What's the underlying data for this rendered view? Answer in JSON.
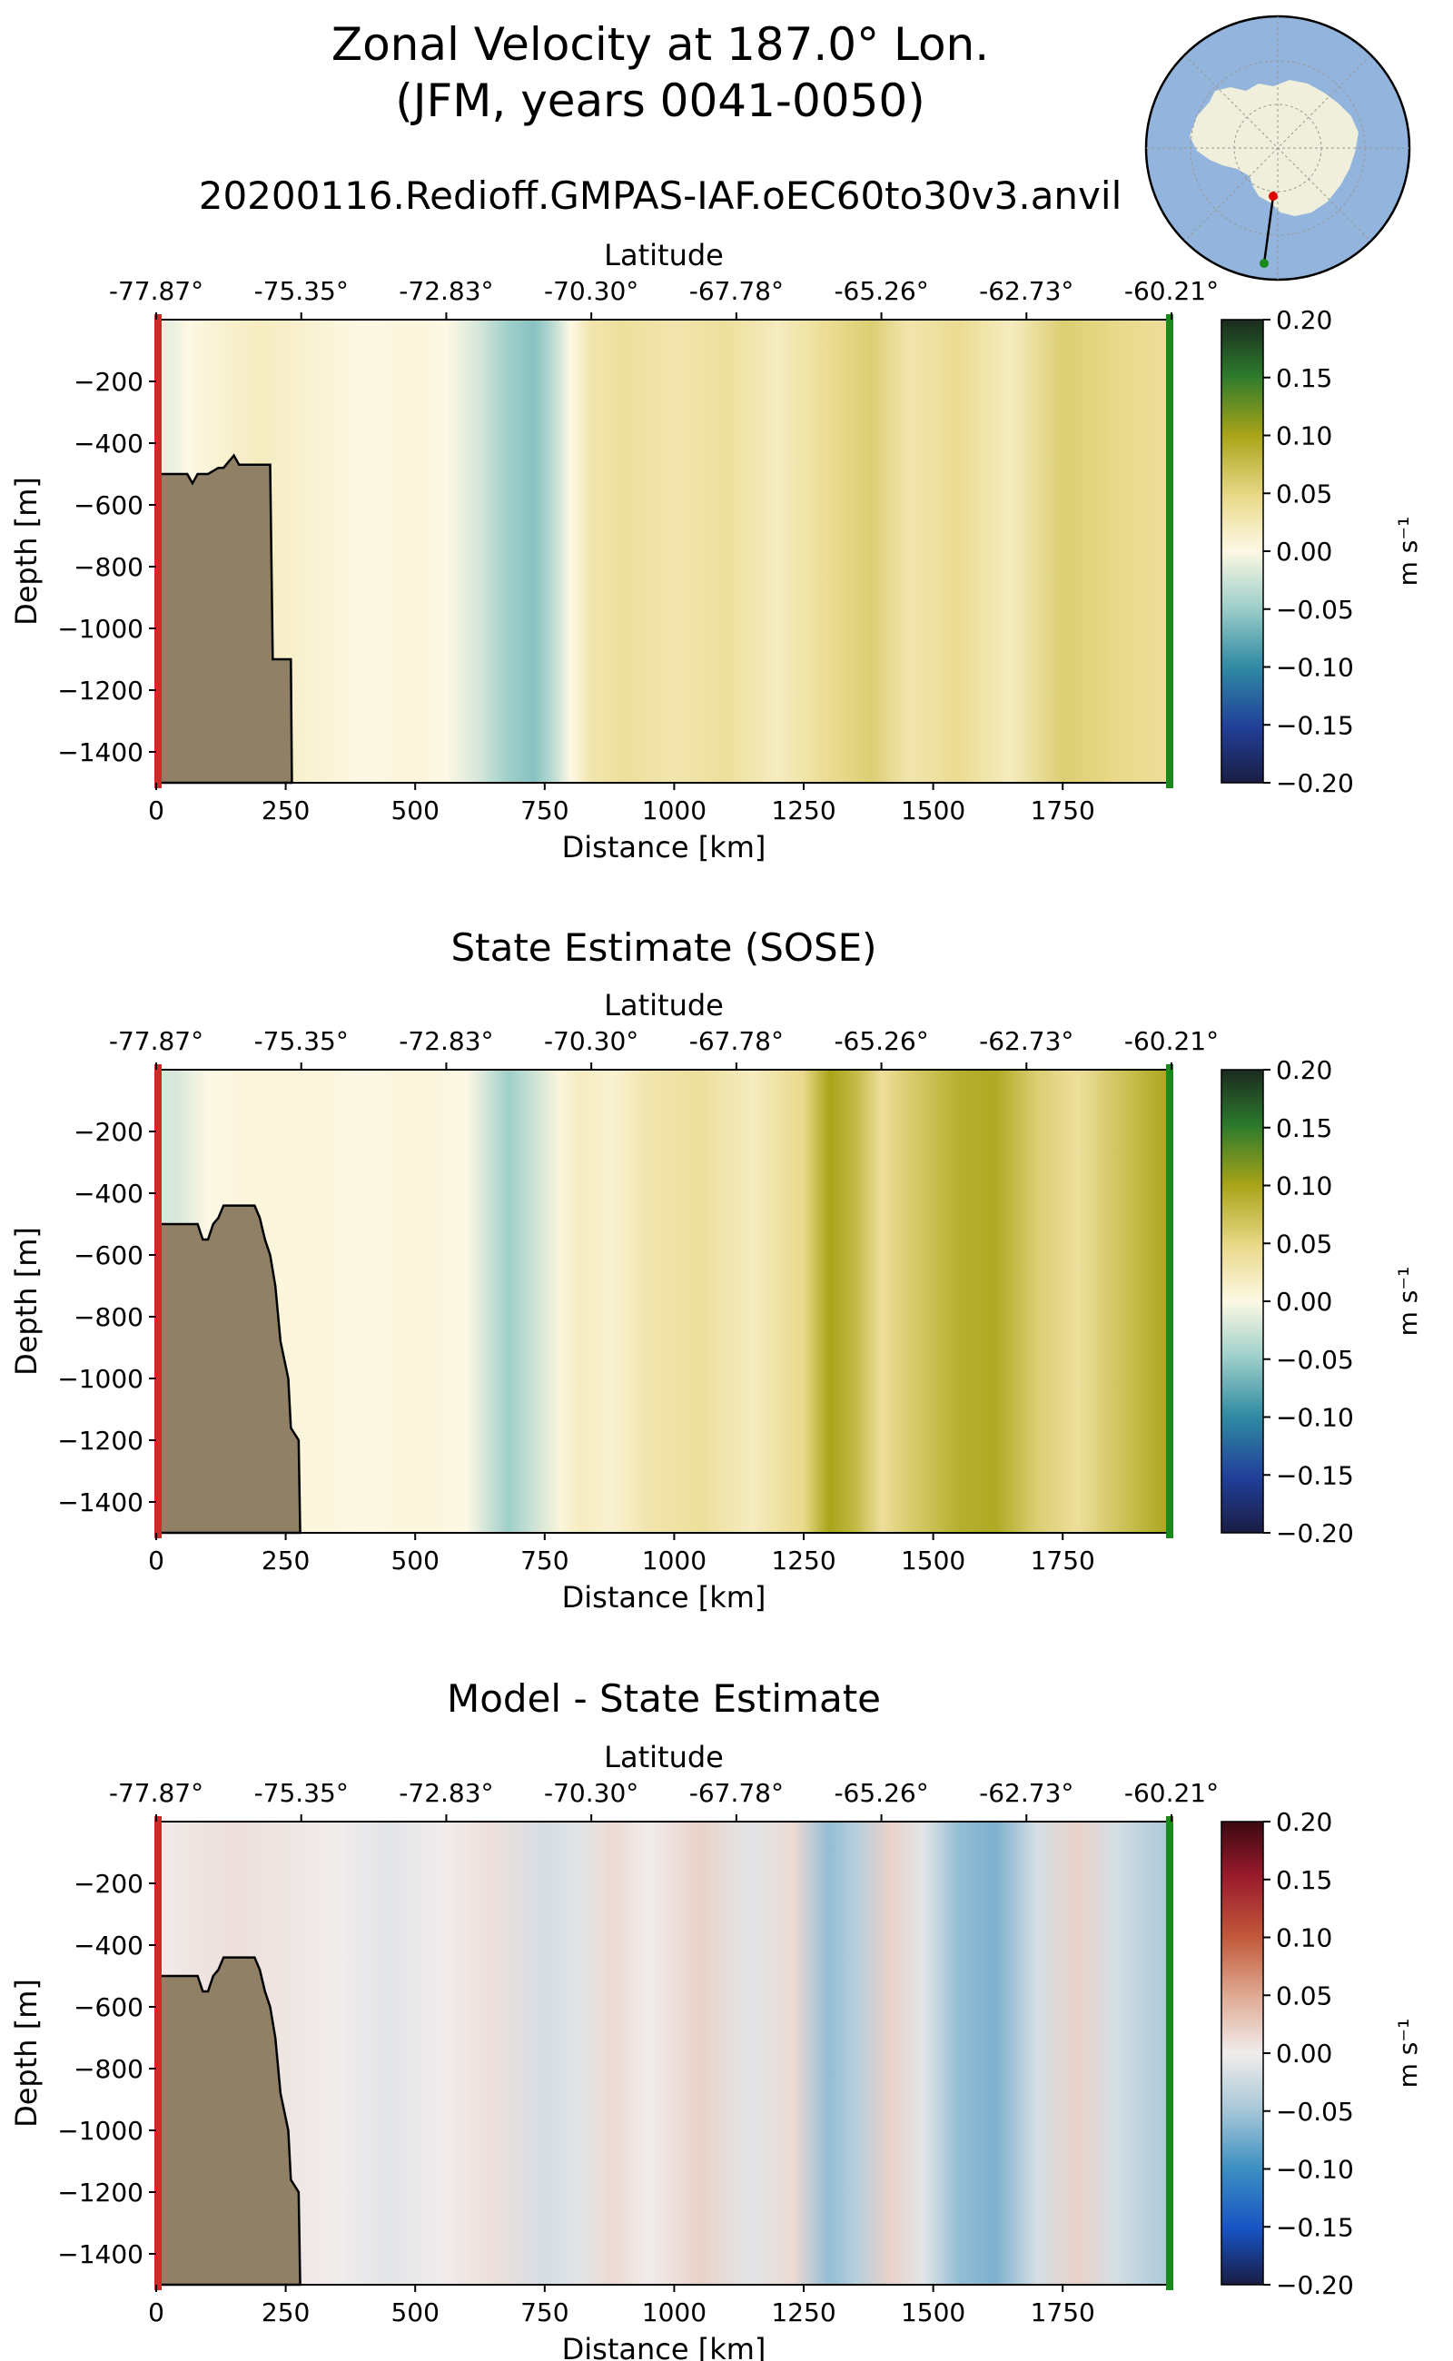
{
  "title": {
    "line1": "Zonal Velocity at 187.0° Lon.",
    "line2": "(JFM, years 0041-0050)"
  },
  "run_name": "20200116.Redioff.GMPAS-IAF.oEC60to30v3.anvil",
  "colors": {
    "bathymetry": "#8f8066",
    "start_marker": "#d62728",
    "end_marker": "#1a8a1a",
    "ocean_map": "#93b4dc",
    "land_map": "#efefdc"
  },
  "chart_data": [
    {
      "type": "heatmap",
      "title": "",
      "xlabel": "Distance [km]",
      "ylabel": "Depth [m]",
      "top_axis_label": "Latitude",
      "xlim": [
        0,
        1960
      ],
      "ylim": [
        -1500,
        0
      ],
      "x_ticks": [
        0,
        250,
        500,
        750,
        1000,
        1250,
        1500,
        1750
      ],
      "x_tick_labels": [
        "0",
        "250",
        "500",
        "750",
        "1000",
        "1250",
        "1500",
        "1750"
      ],
      "y_ticks": [
        -200,
        -400,
        -600,
        -800,
        -1000,
        -1200,
        -1400
      ],
      "y_tick_labels": [
        "−200",
        "−400",
        "−600",
        "−800",
        "−1000",
        "−1200",
        "−1400"
      ],
      "lat_ticks_km": [
        0,
        280,
        560,
        840,
        1120,
        1400,
        1680,
        1960
      ],
      "lat_tick_labels": [
        "-77.87°",
        "-75.35°",
        "-72.83°",
        "-70.30°",
        "-67.78°",
        "-65.26°",
        "-62.73°",
        "-60.21°"
      ],
      "colorbar": {
        "label": "m s⁻¹",
        "colormap": "balance-velocity",
        "ticks": [
          0.2,
          0.15,
          0.1,
          0.05,
          0.0,
          -0.05,
          -0.1,
          -0.15,
          -0.2
        ],
        "tick_labels": [
          "0.20",
          "0.15",
          "0.10",
          "0.05",
          "0.00",
          "−0.05",
          "−0.10",
          "−0.15",
          "−0.20"
        ]
      },
      "velocity_profile": {
        "x_km": [
          0,
          30,
          60,
          120,
          200,
          300,
          400,
          500,
          560,
          620,
          680,
          730,
          760,
          800,
          840,
          900,
          1000,
          1100,
          1200,
          1300,
          1380,
          1450,
          1550,
          1650,
          1750,
          1850,
          1960
        ],
        "u": [
          -0.01,
          -0.01,
          0.0,
          0.01,
          0.02,
          0.01,
          0.0,
          0.005,
          0.0,
          -0.02,
          -0.05,
          -0.06,
          -0.04,
          0.0,
          0.03,
          0.04,
          0.03,
          0.04,
          0.02,
          0.045,
          0.06,
          0.03,
          0.045,
          0.02,
          0.06,
          0.05,
          0.04
        ]
      },
      "bathymetry": {
        "x_km": [
          0,
          60,
          70,
          80,
          100,
          120,
          130,
          150,
          160,
          220,
          225,
          260,
          262
        ],
        "depth": [
          -500,
          -500,
          -530,
          -500,
          -500,
          -480,
          -480,
          -440,
          -470,
          -470,
          -1100,
          -1100,
          -1500
        ]
      }
    },
    {
      "type": "heatmap",
      "title": "State Estimate (SOSE)",
      "xlabel": "Distance [km]",
      "ylabel": "Depth [m]",
      "top_axis_label": "Latitude",
      "xlim": [
        0,
        1960
      ],
      "ylim": [
        -1500,
        0
      ],
      "x_ticks": [
        0,
        250,
        500,
        750,
        1000,
        1250,
        1500,
        1750
      ],
      "x_tick_labels": [
        "0",
        "250",
        "500",
        "750",
        "1000",
        "1250",
        "1500",
        "1750"
      ],
      "y_ticks": [
        -200,
        -400,
        -600,
        -800,
        -1000,
        -1200,
        -1400
      ],
      "y_tick_labels": [
        "−200",
        "−400",
        "−600",
        "−800",
        "−1000",
        "−1200",
        "−1400"
      ],
      "lat_ticks_km": [
        0,
        280,
        560,
        840,
        1120,
        1400,
        1680,
        1960
      ],
      "lat_tick_labels": [
        "-77.87°",
        "-75.35°",
        "-72.83°",
        "-70.30°",
        "-67.78°",
        "-65.26°",
        "-62.73°",
        "-60.21°"
      ],
      "colorbar": {
        "label": "m s⁻¹",
        "colormap": "balance-velocity",
        "ticks": [
          0.2,
          0.15,
          0.1,
          0.05,
          0.0,
          -0.05,
          -0.1,
          -0.15,
          -0.2
        ],
        "tick_labels": [
          "0.20",
          "0.15",
          "0.10",
          "0.05",
          "0.00",
          "−0.05",
          "−0.10",
          "−0.15",
          "−0.20"
        ]
      },
      "velocity_profile": {
        "x_km": [
          0,
          40,
          100,
          200,
          300,
          400,
          500,
          600,
          680,
          720,
          780,
          820,
          880,
          950,
          1050,
          1150,
          1250,
          1300,
          1350,
          1400,
          1450,
          1550,
          1620,
          1700,
          1780,
          1860,
          1960
        ],
        "u": [
          -0.02,
          -0.02,
          0.0,
          0.005,
          0.005,
          0.0,
          0.005,
          0.0,
          -0.05,
          -0.03,
          0.005,
          0.02,
          0.01,
          0.03,
          0.04,
          0.02,
          0.05,
          0.1,
          0.08,
          0.04,
          0.06,
          0.09,
          0.095,
          0.06,
          0.04,
          0.07,
          0.1
        ]
      },
      "bathymetry": {
        "x_km": [
          0,
          40,
          42,
          80,
          90,
          100,
          110,
          120,
          130,
          190,
          200,
          210,
          220,
          230,
          240,
          255,
          260,
          275,
          278
        ],
        "depth": [
          -500,
          -500,
          -500,
          -500,
          -550,
          -550,
          -500,
          -480,
          -440,
          -440,
          -480,
          -550,
          -600,
          -700,
          -880,
          -1000,
          -1160,
          -1200,
          -1500
        ]
      }
    },
    {
      "type": "heatmap",
      "title": "Model - State Estimate",
      "xlabel": "Distance [km]",
      "ylabel": "Depth [m]",
      "top_axis_label": "Latitude",
      "xlim": [
        0,
        1960
      ],
      "ylim": [
        -1500,
        0
      ],
      "x_ticks": [
        0,
        250,
        500,
        750,
        1000,
        1250,
        1500,
        1750
      ],
      "x_tick_labels": [
        "0",
        "250",
        "500",
        "750",
        "1000",
        "1250",
        "1500",
        "1750"
      ],
      "y_ticks": [
        -200,
        -400,
        -600,
        -800,
        -1000,
        -1200,
        -1400
      ],
      "y_tick_labels": [
        "−200",
        "−400",
        "−600",
        "−800",
        "−1000",
        "−1200",
        "−1400"
      ],
      "lat_ticks_km": [
        0,
        280,
        560,
        840,
        1120,
        1400,
        1680,
        1960
      ],
      "lat_tick_labels": [
        "-77.87°",
        "-75.35°",
        "-72.83°",
        "-70.30°",
        "-67.78°",
        "-65.26°",
        "-62.73°",
        "-60.21°"
      ],
      "colorbar": {
        "label": "m s⁻¹",
        "colormap": "balance-diff",
        "ticks": [
          0.2,
          0.15,
          0.1,
          0.05,
          0.0,
          -0.05,
          -0.1,
          -0.15,
          -0.2
        ],
        "tick_labels": [
          "0.20",
          "0.15",
          "0.10",
          "0.05",
          "0.00",
          "−0.05",
          "−0.10",
          "−0.15",
          "−0.20"
        ]
      },
      "velocity_profile": {
        "x_km": [
          0,
          60,
          150,
          250,
          350,
          450,
          550,
          650,
          750,
          820,
          880,
          950,
          1050,
          1150,
          1230,
          1300,
          1350,
          1420,
          1480,
          1550,
          1620,
          1700,
          1780,
          1850,
          1960
        ],
        "u": [
          0.0,
          0.005,
          0.01,
          0.005,
          0.0,
          -0.01,
          0.0,
          0.01,
          -0.02,
          -0.01,
          0.015,
          0.0,
          0.02,
          -0.01,
          0.015,
          -0.06,
          -0.04,
          0.02,
          -0.01,
          -0.06,
          -0.07,
          -0.02,
          0.02,
          -0.02,
          -0.05
        ]
      },
      "bathymetry": {
        "x_km": [
          0,
          40,
          42,
          80,
          90,
          100,
          110,
          120,
          130,
          190,
          200,
          210,
          220,
          230,
          240,
          255,
          260,
          275,
          278
        ],
        "depth": [
          -500,
          -500,
          -500,
          -500,
          -550,
          -550,
          -500,
          -480,
          -440,
          -440,
          -480,
          -550,
          -600,
          -700,
          -880,
          -1000,
          -1160,
          -1200,
          -1500
        ]
      }
    }
  ],
  "inset_map": {
    "name": "antarctica-polar-map",
    "transect": "transect-line"
  }
}
